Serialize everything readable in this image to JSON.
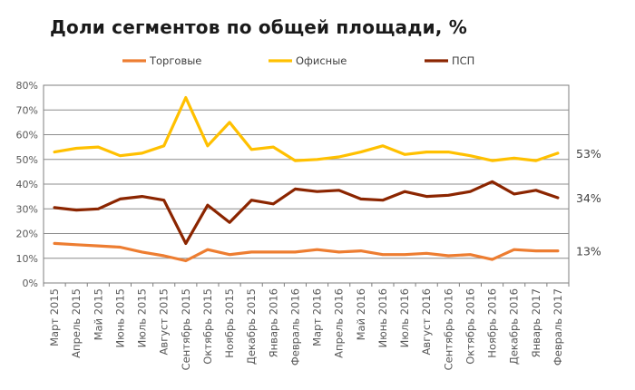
{
  "chart_data": {
    "type": "line",
    "title": "Доли сегментов по общей площади, %",
    "x": [
      "Март 2015",
      "Апрель 2015",
      "Май 2015",
      "Июнь 2015",
      "Июль 2015",
      "Август 2015",
      "Сентябрь 2015",
      "Октябрь 2015",
      "Ноябрь 2015",
      "Декабрь 2015",
      "Январь 2016",
      "Февраль 2016",
      "Март 2016",
      "Апрель 2016",
      "Май 2016",
      "Июнь 2016",
      "Июль 2016",
      "Август 2016",
      "Сентябрь 2016",
      "Октябрь 2016",
      "Ноябрь 2016",
      "Декабрь 2016",
      "Январь 2017",
      "Февраль 2017"
    ],
    "yticks": [
      "0%",
      "10%",
      "20%",
      "30%",
      "40%",
      "50%",
      "60%",
      "70%",
      "80%"
    ],
    "ylim": [
      0,
      80
    ],
    "grid": true,
    "legend": "top",
    "series": [
      {
        "name": "Торговые",
        "color": "#ed7d31",
        "values": [
          16,
          15.5,
          15,
          14.5,
          12.5,
          11,
          9,
          13.5,
          11.5,
          12.5,
          12.5,
          12.5,
          13.5,
          12.5,
          13,
          11.5,
          11.5,
          12,
          11,
          11.5,
          9.5,
          13.5,
          13,
          13
        ]
      },
      {
        "name": "Офисные",
        "color": "#ffc000",
        "values": [
          53,
          54.5,
          55,
          51.5,
          52.5,
          55.5,
          75,
          55.5,
          65,
          54,
          55,
          49.5,
          50,
          51,
          53,
          55.5,
          52,
          53,
          53,
          51.5,
          49.5,
          50.5,
          49.5,
          52.5
        ]
      },
      {
        "name": "ПСП",
        "color": "#8b2500",
        "values": [
          30.5,
          29.5,
          30,
          34,
          35,
          33.5,
          16,
          31.5,
          24.5,
          33.5,
          32,
          38,
          37,
          37.5,
          34,
          33.5,
          37,
          35,
          35.5,
          37,
          41,
          36,
          37.5,
          34.5
        ]
      }
    ],
    "end_labels": [
      "13%",
      "53%",
      "34%"
    ]
  }
}
